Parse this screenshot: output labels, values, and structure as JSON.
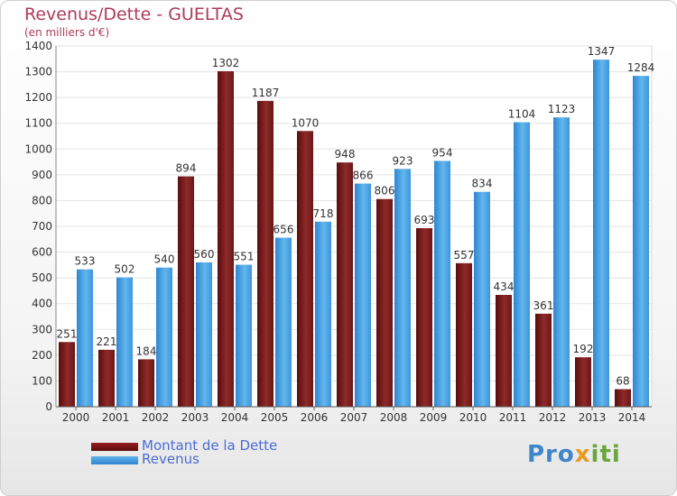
{
  "title": "Revenus/Dette - GUELTAS",
  "unit_note": "(en milliers d'€)",
  "logo": {
    "text": "Proxiti",
    "parts": [
      "Pro",
      "x",
      "iti"
    ]
  },
  "colors": {
    "debt": "#7a1414",
    "revenue": "#3d9ae0",
    "title": "#b03a5a",
    "legend_text": "#4b6bd6"
  },
  "chart_data": {
    "type": "bar",
    "categories": [
      "2000",
      "2001",
      "2002",
      "2003",
      "2004",
      "2005",
      "2006",
      "2007",
      "2008",
      "2009",
      "2010",
      "2011",
      "2012",
      "2013",
      "2014"
    ],
    "series": [
      {
        "name": "Montant de la Dette",
        "values": [
          251,
          221,
          184,
          894,
          1302,
          1187,
          1070,
          948,
          806,
          693,
          557,
          434,
          361,
          192,
          68
        ]
      },
      {
        "name": "Revenus",
        "values": [
          533,
          502,
          540,
          560,
          551,
          656,
          718,
          866,
          923,
          954,
          834,
          1104,
          1123,
          1347,
          1284
        ]
      }
    ],
    "ylim": [
      0,
      1400
    ],
    "yticks": [
      0,
      100,
      200,
      300,
      400,
      500,
      600,
      700,
      800,
      900,
      1000,
      1100,
      1200,
      1300,
      1400
    ],
    "grid": true,
    "legend": "bottom-left"
  }
}
